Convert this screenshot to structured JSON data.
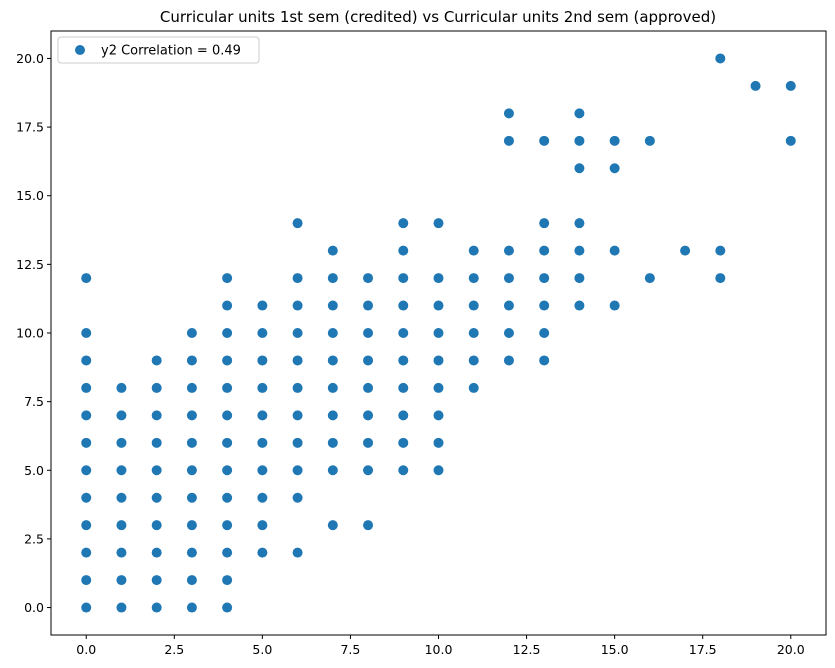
{
  "chart_data": {
    "type": "scatter",
    "title": "Curricular units 1st sem (credited) vs Curricular units 2nd sem (approved)",
    "xlabel": "",
    "ylabel": "",
    "xlim": [
      -1,
      21
    ],
    "ylim": [
      -1,
      21
    ],
    "x_ticks": [
      0,
      2.5,
      5,
      7.5,
      10,
      12.5,
      15,
      17.5,
      20
    ],
    "x_tick_labels": [
      "0.0",
      "2.5",
      "5.0",
      "7.5",
      "10.0",
      "12.5",
      "15.0",
      "17.5",
      "20.0"
    ],
    "y_ticks": [
      0,
      2.5,
      5,
      7.5,
      10,
      12.5,
      15,
      17.5,
      20
    ],
    "y_tick_labels": [
      "0.0",
      "2.5",
      "5.0",
      "7.5",
      "10.0",
      "12.5",
      "15.0",
      "17.5",
      "20.0"
    ],
    "grid": false,
    "legend": {
      "position": "top-left"
    },
    "series": [
      {
        "name": "y2 Correlation = 0.49",
        "color": "#1f77b4",
        "points": [
          [
            0,
            0
          ],
          [
            0,
            1
          ],
          [
            0,
            2
          ],
          [
            0,
            3
          ],
          [
            0,
            4
          ],
          [
            0,
            5
          ],
          [
            0,
            6
          ],
          [
            0,
            7
          ],
          [
            0,
            8
          ],
          [
            0,
            9
          ],
          [
            0,
            10
          ],
          [
            0,
            12
          ],
          [
            1,
            0
          ],
          [
            1,
            1
          ],
          [
            1,
            2
          ],
          [
            1,
            3
          ],
          [
            1,
            4
          ],
          [
            1,
            5
          ],
          [
            1,
            6
          ],
          [
            1,
            7
          ],
          [
            1,
            8
          ],
          [
            2,
            0
          ],
          [
            2,
            1
          ],
          [
            2,
            2
          ],
          [
            2,
            3
          ],
          [
            2,
            4
          ],
          [
            2,
            5
          ],
          [
            2,
            6
          ],
          [
            2,
            7
          ],
          [
            2,
            8
          ],
          [
            2,
            9
          ],
          [
            3,
            0
          ],
          [
            3,
            1
          ],
          [
            3,
            2
          ],
          [
            3,
            3
          ],
          [
            3,
            4
          ],
          [
            3,
            5
          ],
          [
            3,
            6
          ],
          [
            3,
            7
          ],
          [
            3,
            8
          ],
          [
            3,
            9
          ],
          [
            3,
            10
          ],
          [
            4,
            0
          ],
          [
            4,
            1
          ],
          [
            4,
            2
          ],
          [
            4,
            3
          ],
          [
            4,
            4
          ],
          [
            4,
            5
          ],
          [
            4,
            6
          ],
          [
            4,
            7
          ],
          [
            4,
            8
          ],
          [
            4,
            9
          ],
          [
            4,
            10
          ],
          [
            4,
            11
          ],
          [
            4,
            12
          ],
          [
            5,
            2
          ],
          [
            5,
            3
          ],
          [
            5,
            4
          ],
          [
            5,
            5
          ],
          [
            5,
            6
          ],
          [
            5,
            7
          ],
          [
            5,
            8
          ],
          [
            5,
            9
          ],
          [
            5,
            10
          ],
          [
            5,
            11
          ],
          [
            6,
            2
          ],
          [
            6,
            4
          ],
          [
            6,
            5
          ],
          [
            6,
            6
          ],
          [
            6,
            7
          ],
          [
            6,
            8
          ],
          [
            6,
            9
          ],
          [
            6,
            10
          ],
          [
            6,
            11
          ],
          [
            6,
            12
          ],
          [
            6,
            14
          ],
          [
            7,
            3
          ],
          [
            7,
            5
          ],
          [
            7,
            6
          ],
          [
            7,
            7
          ],
          [
            7,
            8
          ],
          [
            7,
            9
          ],
          [
            7,
            10
          ],
          [
            7,
            11
          ],
          [
            7,
            12
          ],
          [
            7,
            13
          ],
          [
            8,
            3
          ],
          [
            8,
            5
          ],
          [
            8,
            6
          ],
          [
            8,
            7
          ],
          [
            8,
            8
          ],
          [
            8,
            9
          ],
          [
            8,
            10
          ],
          [
            8,
            11
          ],
          [
            8,
            12
          ],
          [
            9,
            5
          ],
          [
            9,
            6
          ],
          [
            9,
            7
          ],
          [
            9,
            8
          ],
          [
            9,
            9
          ],
          [
            9,
            10
          ],
          [
            9,
            11
          ],
          [
            9,
            12
          ],
          [
            9,
            13
          ],
          [
            9,
            14
          ],
          [
            10,
            5
          ],
          [
            10,
            6
          ],
          [
            10,
            7
          ],
          [
            10,
            8
          ],
          [
            10,
            9
          ],
          [
            10,
            10
          ],
          [
            10,
            11
          ],
          [
            10,
            12
          ],
          [
            10,
            14
          ],
          [
            11,
            8
          ],
          [
            11,
            9
          ],
          [
            11,
            10
          ],
          [
            11,
            11
          ],
          [
            11,
            12
          ],
          [
            11,
            13
          ],
          [
            12,
            9
          ],
          [
            12,
            10
          ],
          [
            12,
            11
          ],
          [
            12,
            12
          ],
          [
            12,
            13
          ],
          [
            12,
            17
          ],
          [
            12,
            18
          ],
          [
            13,
            9
          ],
          [
            13,
            10
          ],
          [
            13,
            11
          ],
          [
            13,
            12
          ],
          [
            13,
            13
          ],
          [
            13,
            14
          ],
          [
            13,
            17
          ],
          [
            14,
            11
          ],
          [
            14,
            12
          ],
          [
            14,
            13
          ],
          [
            14,
            14
          ],
          [
            14,
            16
          ],
          [
            14,
            17
          ],
          [
            14,
            18
          ],
          [
            15,
            11
          ],
          [
            15,
            13
          ],
          [
            15,
            16
          ],
          [
            15,
            17
          ],
          [
            16,
            12
          ],
          [
            16,
            17
          ],
          [
            17,
            13
          ],
          [
            18,
            12
          ],
          [
            18,
            13
          ],
          [
            18,
            20
          ],
          [
            19,
            19
          ],
          [
            20,
            17
          ],
          [
            20,
            19
          ]
        ]
      }
    ]
  }
}
